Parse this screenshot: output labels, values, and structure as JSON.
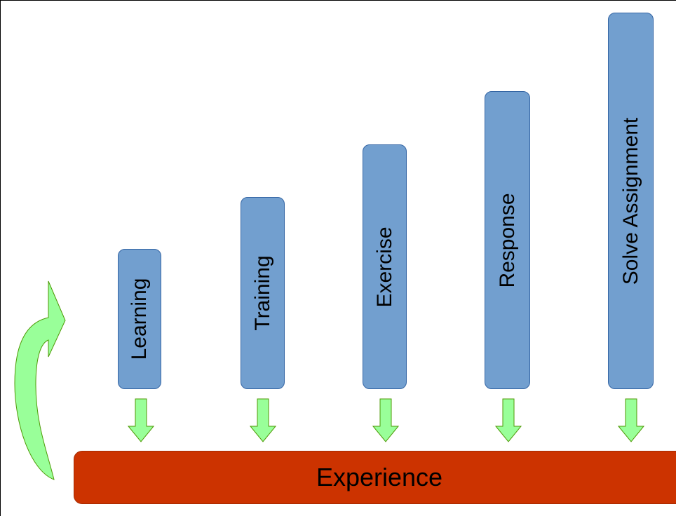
{
  "steps": [
    {
      "label": "Learning"
    },
    {
      "label": "Training"
    },
    {
      "label": "Exercise"
    },
    {
      "label": "Response"
    },
    {
      "label": "Solve Assignment"
    }
  ],
  "base": {
    "label": "Experience"
  },
  "colors": {
    "step_fill": "#729fcf",
    "step_border": "#3465a4",
    "arrow_fill": "#99ff99",
    "arrow_border": "#4e9a06",
    "base_fill": "#cc3300"
  }
}
